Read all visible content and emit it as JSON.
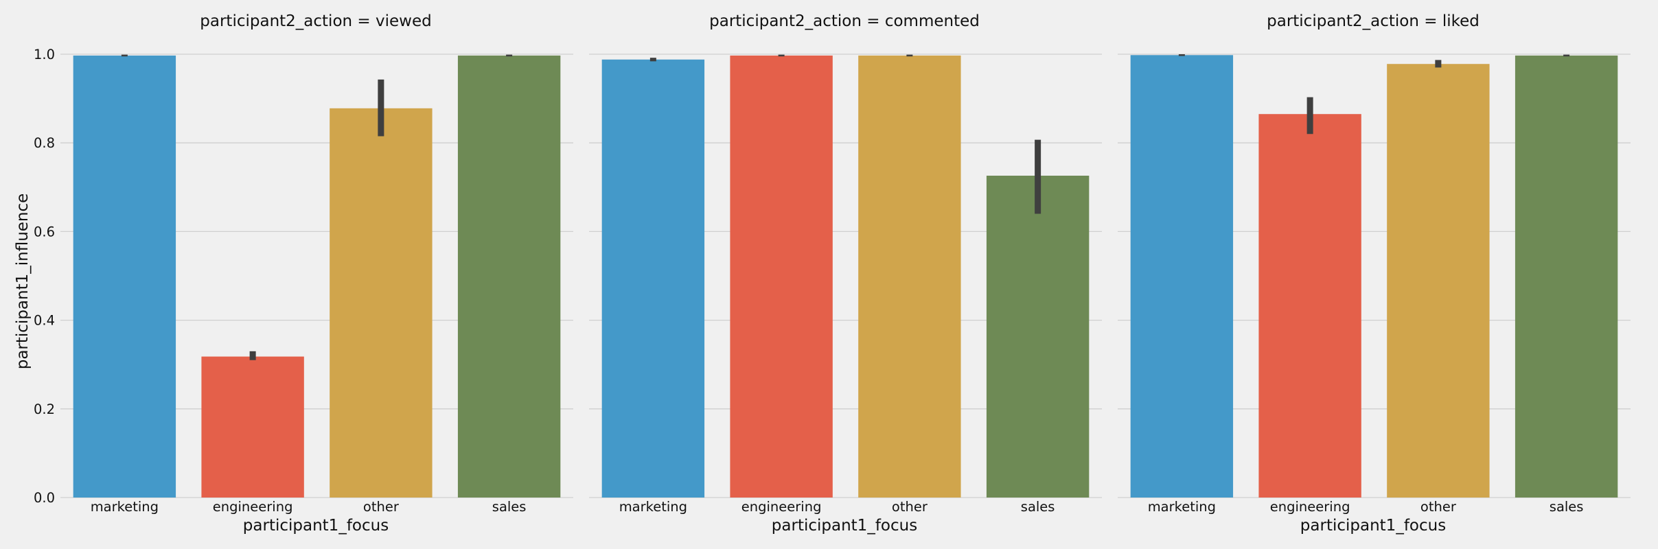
{
  "chart_data": {
    "type": "bar",
    "layout": "facet-columns",
    "facet_variable": "participant2_action",
    "xlabel": "participant1_focus",
    "ylabel": "participant1_influence",
    "ylim": [
      0,
      1.0
    ],
    "yticks": [
      "0.0",
      "0.2",
      "0.4",
      "0.6",
      "0.8",
      "1.0"
    ],
    "grid": "horizontal",
    "categories": [
      "marketing",
      "engineering",
      "other",
      "sales"
    ],
    "colors": [
      "#4499c9",
      "#e4604a",
      "#d0a54c",
      "#6e8a55"
    ],
    "error_bar_color": "#3f3f3f",
    "background": "#f0f0f0",
    "grid_color": "#cfcfcf",
    "facets": [
      {
        "title": "participant2_action = viewed",
        "values": [
          0.997,
          0.318,
          0.878,
          0.997
        ],
        "ci": [
          [
            0.995,
            0.999
          ],
          [
            0.31,
            0.33
          ],
          [
            0.815,
            0.943
          ],
          [
            0.995,
            0.999
          ]
        ]
      },
      {
        "title": "participant2_action = commented",
        "values": [
          0.988,
          0.997,
          0.997,
          0.726
        ],
        "ci": [
          [
            0.984,
            0.992
          ],
          [
            0.995,
            0.999
          ],
          [
            0.995,
            0.999
          ],
          [
            0.64,
            0.807
          ]
        ]
      },
      {
        "title": "participant2_action = liked",
        "values": [
          0.998,
          0.865,
          0.978,
          0.997
        ],
        "ci": [
          [
            0.996,
            1.0
          ],
          [
            0.82,
            0.903
          ],
          [
            0.97,
            0.987
          ],
          [
            0.995,
            0.999
          ]
        ]
      }
    ]
  }
}
